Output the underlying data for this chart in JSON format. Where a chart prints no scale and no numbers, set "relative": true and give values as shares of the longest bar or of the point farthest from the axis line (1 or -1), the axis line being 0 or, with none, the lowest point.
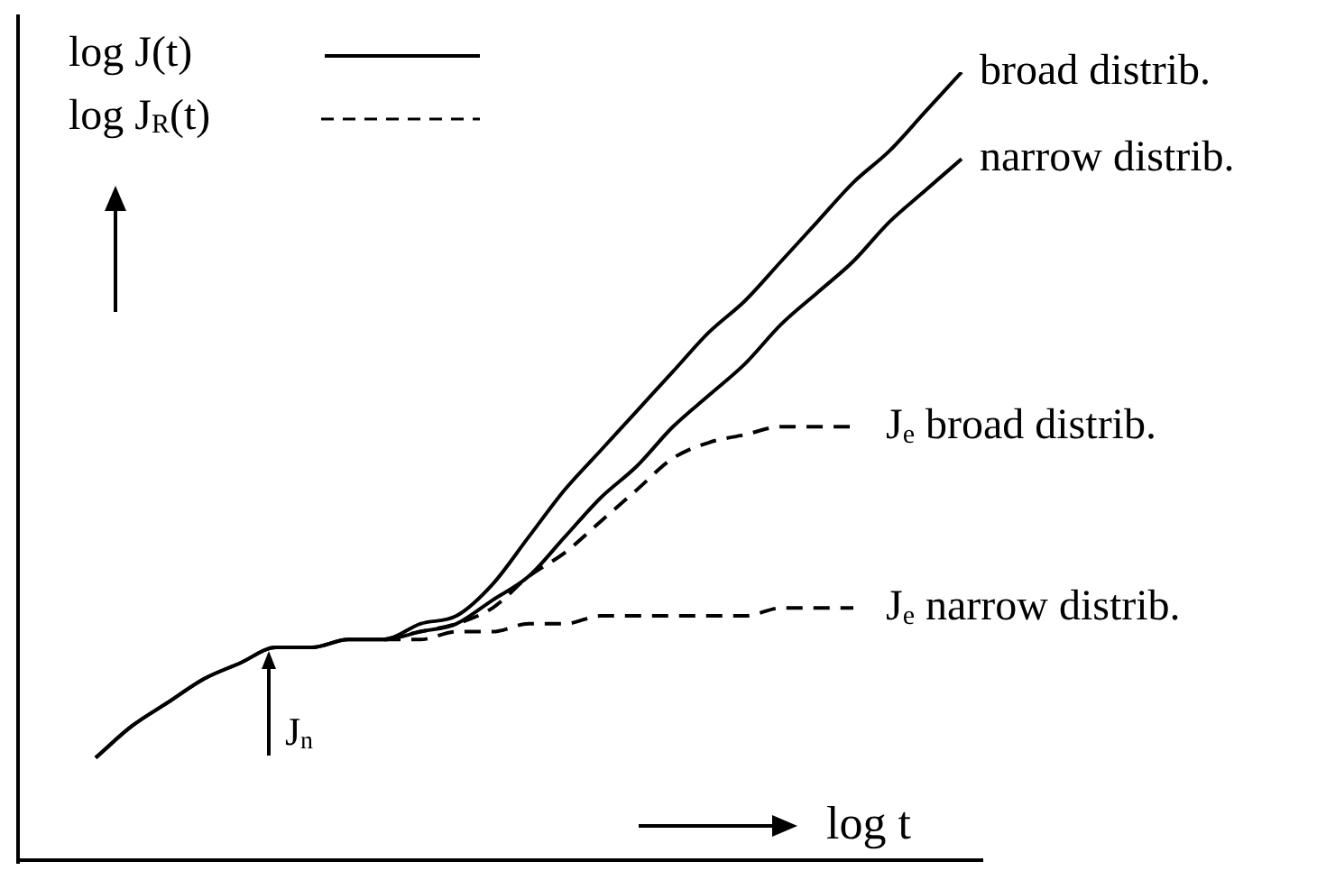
{
  "chart_data": {
    "type": "line",
    "relative": true,
    "xlabel": "log t",
    "categories": [
      null,
      null,
      null,
      null,
      null,
      null,
      null,
      null,
      null,
      null,
      null,
      null,
      null,
      null,
      null,
      null,
      null,
      null,
      null,
      null,
      null,
      null,
      null,
      null,
      null
    ],
    "legend": false,
    "marker": "none",
    "annotations": [
      "log J(t)",
      "log J$_{R}$(t)",
      "J$_{n}$"
    ],
    "series": [
      {
        "name": "broad distrib.",
        "color": "#000000",
        "line_style": "solid",
        "values": [
          0.13,
          0.17,
          0.2,
          0.23,
          0.25,
          0.27,
          0.27,
          0.28,
          0.28,
          0.3,
          0.31,
          0.35,
          0.41,
          0.47,
          0.52,
          0.57,
          0.62,
          0.67,
          0.71,
          0.76,
          0.81,
          0.86,
          0.9,
          0.95,
          1
        ]
      },
      {
        "name": "narrow distrib.",
        "color": "#000000",
        "line_style": "solid",
        "values": [
          0.13,
          0.17,
          0.2,
          0.23,
          0.25,
          0.27,
          0.27,
          0.28,
          0.28,
          0.29,
          0.3,
          0.33,
          0.36,
          0.41,
          0.46,
          0.5,
          0.55,
          0.59,
          0.63,
          0.68,
          0.72,
          0.76,
          0.81,
          0.85,
          0.89
        ]
      },
      {
        "name": "J$_{e}$ broad distrib.",
        "color": "#000000",
        "line_style": "dashed",
        "values": [
          null,
          null,
          null,
          null,
          null,
          null,
          null,
          null,
          0.28,
          0.29,
          0.3,
          0.32,
          0.36,
          0.39,
          0.43,
          0.47,
          0.51,
          0.53,
          0.54,
          0.55,
          0.55,
          0.55,
          null,
          null,
          null
        ]
      },
      {
        "name": "J$_{e}$ narrow distrib.",
        "color": "#000000",
        "line_style": "dashed",
        "values": [
          null,
          null,
          null,
          null,
          null,
          null,
          null,
          null,
          0.28,
          0.28,
          0.29,
          0.29,
          0.3,
          0.3,
          0.31,
          0.31,
          0.31,
          0.31,
          0.31,
          0.32,
          0.32,
          0.32,
          null,
          null,
          null
        ]
      }
    ]
  }
}
